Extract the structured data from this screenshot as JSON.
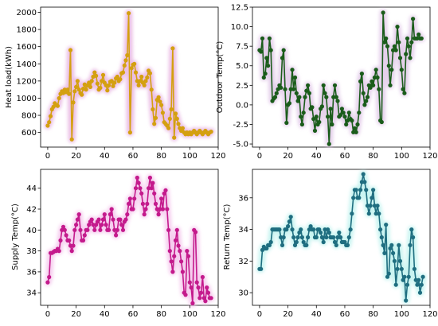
{
  "chart_data": [
    {
      "type": "line",
      "ylabel": "Heat load(kWh)",
      "color": "#d4a010",
      "glow": "#e8b4e0",
      "xlim": [
        -5,
        120
      ],
      "ylim": [
        430,
        2060
      ],
      "xticks": [
        0,
        20,
        40,
        60,
        80,
        100,
        120
      ],
      "yticks": [
        600,
        800,
        1000,
        1200,
        1400,
        1600,
        1800,
        2000
      ],
      "x": [
        0,
        1,
        2,
        3,
        4,
        5,
        6,
        7,
        8,
        9,
        10,
        11,
        12,
        13,
        14,
        15,
        16,
        17,
        18,
        19,
        20,
        21,
        22,
        23,
        24,
        25,
        26,
        27,
        28,
        29,
        30,
        31,
        32,
        33,
        34,
        35,
        36,
        37,
        38,
        39,
        40,
        41,
        42,
        43,
        44,
        45,
        46,
        47,
        48,
        49,
        50,
        51,
        52,
        53,
        54,
        55,
        56,
        57,
        58,
        59,
        60,
        61,
        62,
        63,
        64,
        65,
        66,
        67,
        68,
        69,
        70,
        71,
        72,
        73,
        74,
        75,
        76,
        77,
        78,
        79,
        80,
        81,
        82,
        83,
        84,
        85,
        86,
        87,
        88,
        89,
        90,
        91,
        92,
        93,
        94,
        95,
        96,
        97,
        98,
        99,
        100,
        101,
        102,
        103,
        104,
        105,
        106,
        107,
        108,
        109,
        110,
        111,
        112,
        113,
        114,
        115
      ],
      "y": [
        680,
        720,
        790,
        870,
        900,
        940,
        920,
        910,
        1000,
        1050,
        1080,
        1060,
        1100,
        1070,
        1100,
        1050,
        1560,
        520,
        950,
        1080,
        1130,
        1200,
        1100,
        1060,
        1040,
        1110,
        1160,
        1100,
        1150,
        1180,
        1130,
        1200,
        1250,
        1300,
        1260,
        1170,
        1100,
        1120,
        1200,
        1270,
        1180,
        1150,
        1090,
        1150,
        1190,
        1200,
        1140,
        1180,
        1230,
        1250,
        1200,
        1220,
        1290,
        1300,
        1380,
        1440,
        1500,
        1990,
        600,
        1350,
        1390,
        1400,
        1300,
        1200,
        1150,
        1200,
        1250,
        1180,
        1150,
        1200,
        1240,
        1320,
        1290,
        1100,
        870,
        700,
        770,
        980,
        1010,
        960,
        920,
        830,
        720,
        700,
        680,
        650,
        760,
        870,
        1580,
        540,
        820,
        760,
        700,
        650,
        620,
        650,
        600,
        580,
        600,
        580,
        600,
        580,
        600,
        620,
        600,
        580,
        600,
        620,
        600,
        580,
        600,
        620,
        600,
        580,
        600,
        610
      ]
    },
    {
      "type": "line",
      "ylabel": "Outdoor Temp(°C)",
      "color": "#1a5c1a",
      "glow": "#e0c8e8",
      "xlim": [
        -5,
        120
      ],
      "ylim": [
        -5.4,
        12.5
      ],
      "xticks": [
        0,
        20,
        40,
        60,
        80,
        100,
        120
      ],
      "yticks": [
        -5.0,
        -2.5,
        0.0,
        2.5,
        5.0,
        7.5,
        10.0,
        12.5
      ],
      "x": [
        0,
        1,
        2,
        3,
        4,
        5,
        6,
        7,
        8,
        9,
        10,
        11,
        12,
        13,
        14,
        15,
        16,
        17,
        18,
        19,
        20,
        21,
        22,
        23,
        24,
        25,
        26,
        27,
        28,
        29,
        30,
        31,
        32,
        33,
        34,
        35,
        36,
        37,
        38,
        39,
        40,
        41,
        42,
        43,
        44,
        45,
        46,
        47,
        48,
        49,
        50,
        51,
        52,
        53,
        54,
        55,
        56,
        57,
        58,
        59,
        60,
        61,
        62,
        63,
        64,
        65,
        66,
        67,
        68,
        69,
        70,
        71,
        72,
        73,
        74,
        75,
        76,
        77,
        78,
        79,
        80,
        81,
        82,
        83,
        84,
        85,
        86,
        87,
        88,
        89,
        90,
        91,
        92,
        93,
        94,
        95,
        96,
        97,
        98,
        99,
        100,
        101,
        102,
        103,
        104,
        105,
        106,
        107,
        108,
        109,
        110,
        111,
        112,
        113,
        114
      ],
      "y": [
        7.0,
        6.8,
        8.5,
        3.5,
        4.0,
        6.0,
        5.0,
        8.5,
        7.0,
        0.5,
        0.8,
        1.0,
        1.5,
        2.0,
        2.5,
        2.2,
        6.0,
        7.0,
        2.0,
        -2.3,
        0.0,
        0.2,
        2.0,
        4.5,
        2.0,
        3.5,
        1.5,
        0.5,
        1.0,
        -1.5,
        -2.5,
        -1.0,
        1.0,
        1.8,
        2.5,
        1.5,
        -0.5,
        -0.3,
        -1.8,
        -3.3,
        -1.5,
        -2.5,
        -2.2,
        -0.5,
        -0.2,
        2.5,
        1.5,
        1.0,
        -1.5,
        -5.0,
        -0.5,
        -2.5,
        1.0,
        2.5,
        1.0,
        0.5,
        -1.5,
        -1.3,
        -0.5,
        -1.0,
        -1.5,
        -2.5,
        -2.0,
        -1.0,
        -1.8,
        -2.0,
        -3.5,
        -3.0,
        -3.5,
        -2.5,
        -1.0,
        3.0,
        4.0,
        1.5,
        0.0,
        0.5,
        1.0,
        2.5,
        2.2,
        3.0,
        2.5,
        3.5,
        4.5,
        3.5,
        2.0,
        -2.0,
        -2.2,
        11.8,
        8.0,
        8.5,
        7.5,
        5.0,
        2.5,
        4.5,
        7.0,
        7.5,
        7.0,
        10.0,
        8.0,
        6.0,
        4.5,
        2.0,
        1.5,
        6.5,
        8.5,
        7.5,
        6.0,
        8.0,
        11.0,
        8.5,
        8.5,
        8.5,
        9.0,
        8.5,
        8.5
      ],
      "note": ""
    },
    {
      "type": "line",
      "ylabel": "Supply Temp(°C)",
      "color": "#c41a8c",
      "glow": "#f4c6ec",
      "xlim": [
        -5,
        120
      ],
      "ylim": [
        32.8,
        45.8
      ],
      "xticks": [
        0,
        20,
        40,
        60,
        80,
        100,
        120
      ],
      "yticks": [
        34,
        36,
        38,
        40,
        42,
        44
      ],
      "x": [
        0,
        1,
        2,
        3,
        4,
        5,
        6,
        7,
        8,
        9,
        10,
        11,
        12,
        13,
        14,
        15,
        16,
        17,
        18,
        19,
        20,
        21,
        22,
        23,
        24,
        25,
        26,
        27,
        28,
        29,
        30,
        31,
        32,
        33,
        34,
        35,
        36,
        37,
        38,
        39,
        40,
        41,
        42,
        43,
        44,
        45,
        46,
        47,
        48,
        49,
        50,
        51,
        52,
        53,
        54,
        55,
        56,
        57,
        58,
        59,
        60,
        61,
        62,
        63,
        64,
        65,
        66,
        67,
        68,
        69,
        70,
        71,
        72,
        73,
        74,
        75,
        76,
        77,
        78,
        79,
        80,
        81,
        82,
        83,
        84,
        85,
        86,
        87,
        88,
        89,
        90,
        91,
        92,
        93,
        94,
        95,
        96,
        97,
        98,
        99,
        100,
        101,
        102,
        103,
        104,
        105,
        106,
        107,
        108,
        109,
        110,
        111,
        112,
        113,
        114,
        115
      ],
      "y": [
        35.0,
        35.5,
        37.8,
        37.8,
        37.9,
        38.0,
        38.0,
        38.2,
        38.0,
        39.0,
        40.0,
        40.3,
        40.0,
        39.5,
        39.0,
        39.0,
        38.5,
        38.0,
        38.5,
        40.0,
        40.5,
        41.0,
        41.5,
        40.0,
        39.0,
        39.0,
        39.5,
        40.0,
        40.0,
        40.5,
        40.8,
        41.0,
        40.5,
        40.0,
        40.5,
        40.8,
        41.0,
        40.0,
        40.5,
        41.0,
        41.5,
        40.5,
        40.0,
        40.0,
        41.5,
        42.0,
        41.0,
        40.0,
        39.5,
        40.0,
        41.0,
        41.0,
        40.5,
        40.0,
        40.8,
        41.0,
        41.5,
        42.5,
        43.0,
        42.0,
        42.0,
        43.0,
        44.0,
        45.0,
        44.5,
        44.0,
        43.5,
        42.5,
        41.5,
        42.0,
        42.5,
        44.0,
        45.0,
        44.0,
        44.5,
        43.5,
        42.5,
        42.0,
        41.5,
        42.0,
        43.0,
        42.0,
        43.5,
        43.8,
        42.0,
        40.0,
        38.0,
        37.0,
        36.0,
        37.5,
        39.0,
        40.0,
        38.5,
        38.0,
        37.0,
        36.0,
        34.0,
        33.8,
        38.0,
        37.5,
        35.0,
        34.5,
        33.0,
        40.0,
        39.8,
        35.0,
        34.5,
        33.5,
        34.0,
        35.5,
        33.5,
        33.2,
        34.5,
        34.0,
        33.5,
        33.5
      ],
      "note": ""
    },
    {
      "type": "line",
      "ylabel": "Return Temp(°C)",
      "color": "#1f6e80",
      "glow": "#bff2ee",
      "xlim": [
        -5,
        120
      ],
      "ylim": [
        29.2,
        37.8
      ],
      "xticks": [
        0,
        20,
        40,
        60,
        80,
        100,
        120
      ],
      "yticks": [
        30,
        32,
        34,
        36
      ],
      "x": [
        0,
        1,
        2,
        3,
        4,
        5,
        6,
        7,
        8,
        9,
        10,
        11,
        12,
        13,
        14,
        15,
        16,
        17,
        18,
        19,
        20,
        21,
        22,
        23,
        24,
        25,
        26,
        27,
        28,
        29,
        30,
        31,
        32,
        33,
        34,
        35,
        36,
        37,
        38,
        39,
        40,
        41,
        42,
        43,
        44,
        45,
        46,
        47,
        48,
        49,
        50,
        51,
        52,
        53,
        54,
        55,
        56,
        57,
        58,
        59,
        60,
        61,
        62,
        63,
        64,
        65,
        66,
        67,
        68,
        69,
        70,
        71,
        72,
        73,
        74,
        75,
        76,
        77,
        78,
        79,
        80,
        81,
        82,
        83,
        84,
        85,
        86,
        87,
        88,
        89,
        90,
        91,
        92,
        93,
        94,
        95,
        96,
        97,
        98,
        99,
        100,
        101,
        102,
        103,
        104,
        105,
        106,
        107,
        108,
        109,
        110,
        111,
        112,
        113,
        114,
        115
      ],
      "y": [
        31.5,
        31.5,
        32.7,
        32.9,
        32.8,
        32.8,
        33.0,
        33.0,
        33.2,
        34.0,
        34.0,
        34.0,
        34.0,
        34.0,
        34.0,
        33.5,
        33.0,
        33.5,
        34.0,
        34.0,
        34.2,
        34.5,
        34.8,
        34.0,
        33.5,
        33.0,
        33.2,
        33.5,
        33.8,
        34.0,
        33.5,
        33.2,
        33.0,
        33.0,
        33.5,
        34.0,
        34.2,
        34.0,
        34.0,
        33.5,
        33.5,
        34.0,
        34.0,
        33.8,
        33.5,
        33.2,
        34.0,
        33.5,
        34.0,
        33.8,
        33.5,
        33.5,
        33.5,
        33.2,
        33.0,
        33.5,
        33.8,
        33.5,
        33.2,
        33.2,
        33.2,
        33.0,
        33.0,
        33.5,
        34.0,
        35.0,
        36.0,
        36.5,
        36.5,
        36.0,
        36.0,
        36.5,
        37.0,
        37.5,
        37.0,
        36.5,
        35.5,
        35.0,
        35.5,
        36.0,
        36.5,
        35.5,
        35.0,
        35.5,
        35.0,
        34.0,
        33.5,
        33.0,
        32.5,
        34.3,
        31.0,
        31.2,
        32.8,
        33.0,
        32.5,
        32.0,
        30.5,
        31.5,
        33.0,
        32.0,
        31.5,
        30.8,
        31.0,
        29.5,
        30.5,
        31.0,
        33.0,
        34.0,
        33.5,
        31.5,
        30.8,
        30.5,
        30.8,
        30.0,
        30.5,
        31.0
      ]
    }
  ]
}
